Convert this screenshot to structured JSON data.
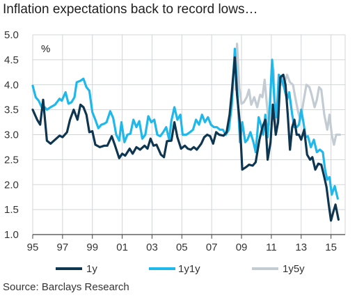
{
  "title": "Inflation expectations back to record lows…",
  "source": "Source: Barclays Research",
  "chart_data": {
    "type": "line",
    "unit_label": "%",
    "ylim": [
      1.0,
      5.0
    ],
    "y_ticks": [
      "1.0",
      "1.5",
      "2.0",
      "2.5",
      "3.0",
      "3.5",
      "4.0",
      "4.5",
      "5.0"
    ],
    "xlim": [
      1995.0,
      2015.95
    ],
    "x_tick_labels": [
      "95",
      "97",
      "99",
      "01",
      "03",
      "05",
      "07",
      "09",
      "11",
      "13",
      "15"
    ],
    "grid": true,
    "legend_position": "bottom",
    "colors": {
      "1y": "#0f3650",
      "1y1y": "#1fb8ea",
      "1y5y": "#c3ccd3"
    },
    "series": [
      {
        "name": "1y",
        "points": [
          [
            1995.0,
            3.5
          ],
          [
            1995.3,
            3.3
          ],
          [
            1995.5,
            3.2
          ],
          [
            1995.7,
            3.7
          ],
          [
            1995.95,
            2.88
          ],
          [
            1996.2,
            2.82
          ],
          [
            1996.5,
            2.9
          ],
          [
            1996.8,
            2.98
          ],
          [
            1997.0,
            2.95
          ],
          [
            1997.3,
            3.05
          ],
          [
            1997.5,
            3.3
          ],
          [
            1997.75,
            3.5
          ],
          [
            1998.0,
            3.3
          ],
          [
            1998.2,
            3.6
          ],
          [
            1998.4,
            3.55
          ],
          [
            1998.6,
            3.4
          ],
          [
            1998.8,
            3.05
          ],
          [
            1999.0,
            3.07
          ],
          [
            1999.2,
            2.8
          ],
          [
            1999.5,
            2.75
          ],
          [
            1999.8,
            2.78
          ],
          [
            2000.0,
            2.78
          ],
          [
            2000.3,
            2.97
          ],
          [
            2000.5,
            2.8
          ],
          [
            2000.8,
            2.53
          ],
          [
            2001.0,
            2.62
          ],
          [
            2001.2,
            2.58
          ],
          [
            2001.5,
            2.72
          ],
          [
            2001.7,
            2.62
          ],
          [
            2001.95,
            2.75
          ],
          [
            2002.2,
            2.7
          ],
          [
            2002.5,
            2.78
          ],
          [
            2002.7,
            2.72
          ],
          [
            2002.9,
            2.92
          ],
          [
            2003.1,
            2.78
          ],
          [
            2003.3,
            2.8
          ],
          [
            2003.6,
            2.6
          ],
          [
            2003.8,
            2.55
          ],
          [
            2004.0,
            2.87
          ],
          [
            2004.3,
            2.88
          ],
          [
            2004.5,
            3.25
          ],
          [
            2004.7,
            2.95
          ],
          [
            2004.95,
            2.72
          ],
          [
            2005.2,
            2.78
          ],
          [
            2005.4,
            2.72
          ],
          [
            2005.6,
            2.7
          ],
          [
            2005.8,
            2.75
          ],
          [
            2006.0,
            2.7
          ],
          [
            2006.3,
            2.82
          ],
          [
            2006.5,
            2.95
          ],
          [
            2006.7,
            3.0
          ],
          [
            2006.9,
            2.97
          ],
          [
            2007.1,
            2.82
          ],
          [
            2007.3,
            3.05
          ],
          [
            2007.5,
            3.0
          ],
          [
            2007.8,
            2.98
          ],
          [
            2008.0,
            3.05
          ],
          [
            2008.2,
            3.4
          ],
          [
            2008.35,
            3.85
          ],
          [
            2008.55,
            4.55
          ],
          [
            2008.7,
            3.8
          ],
          [
            2008.9,
            3.2
          ],
          [
            2009.05,
            2.3
          ],
          [
            2009.3,
            2.35
          ],
          [
            2009.5,
            2.4
          ],
          [
            2009.75,
            2.38
          ],
          [
            2009.95,
            2.45
          ],
          [
            2010.2,
            2.9
          ],
          [
            2010.4,
            3.15
          ],
          [
            2010.6,
            3.3
          ],
          [
            2010.75,
            2.5
          ],
          [
            2010.95,
            2.85
          ],
          [
            2011.1,
            3.6
          ],
          [
            2011.3,
            3.0
          ],
          [
            2011.45,
            3.25
          ],
          [
            2011.6,
            4.15
          ],
          [
            2011.8,
            4.2
          ],
          [
            2011.95,
            4.0
          ],
          [
            2012.1,
            3.4
          ],
          [
            2012.25,
            2.7
          ],
          [
            2012.4,
            3.15
          ],
          [
            2012.55,
            3.3
          ],
          [
            2012.7,
            3.0
          ],
          [
            2012.85,
            3.0
          ],
          [
            2013.0,
            2.9
          ],
          [
            2013.2,
            3.1
          ],
          [
            2013.4,
            2.6
          ],
          [
            2013.6,
            2.5
          ],
          [
            2013.75,
            2.55
          ],
          [
            2013.95,
            2.3
          ],
          [
            2014.15,
            2.42
          ],
          [
            2014.35,
            2.4
          ],
          [
            2014.55,
            2.15
          ],
          [
            2014.7,
            1.95
          ],
          [
            2014.85,
            1.6
          ],
          [
            2015.0,
            1.28
          ],
          [
            2015.15,
            1.45
          ],
          [
            2015.3,
            1.6
          ],
          [
            2015.5,
            1.3
          ]
        ]
      },
      {
        "name": "1y1y",
        "points": [
          [
            1995.0,
            3.98
          ],
          [
            1995.2,
            3.75
          ],
          [
            1995.4,
            3.68
          ],
          [
            1995.6,
            3.55
          ],
          [
            1995.8,
            3.55
          ],
          [
            1995.95,
            3.5
          ],
          [
            1996.2,
            3.55
          ],
          [
            1996.5,
            3.6
          ],
          [
            1996.8,
            3.72
          ],
          [
            1996.95,
            3.68
          ],
          [
            1997.2,
            3.85
          ],
          [
            1997.4,
            3.62
          ],
          [
            1997.6,
            3.65
          ],
          [
            1997.8,
            3.75
          ],
          [
            1997.95,
            4.05
          ],
          [
            1998.2,
            4.08
          ],
          [
            1998.4,
            4.12
          ],
          [
            1998.6,
            3.95
          ],
          [
            1998.8,
            3.88
          ],
          [
            1999.0,
            3.45
          ],
          [
            1999.2,
            3.3
          ],
          [
            1999.4,
            3.13
          ],
          [
            1999.6,
            3.2
          ],
          [
            1999.8,
            3.22
          ],
          [
            1999.95,
            3.25
          ],
          [
            2000.2,
            3.47
          ],
          [
            2000.4,
            3.33
          ],
          [
            2000.6,
            3.0
          ],
          [
            2000.8,
            2.88
          ],
          [
            2000.95,
            3.25
          ],
          [
            2001.15,
            2.85
          ],
          [
            2001.35,
            3.0
          ],
          [
            2001.55,
            3.02
          ],
          [
            2001.75,
            3.3
          ],
          [
            2001.95,
            3.15
          ],
          [
            2002.15,
            3.27
          ],
          [
            2002.35,
            2.92
          ],
          [
            2002.55,
            3.0
          ],
          [
            2002.75,
            3.37
          ],
          [
            2002.95,
            3.25
          ],
          [
            2003.15,
            3.3
          ],
          [
            2003.35,
            3.0
          ],
          [
            2003.55,
            2.97
          ],
          [
            2003.75,
            3.05
          ],
          [
            2003.95,
            3.15
          ],
          [
            2004.15,
            2.9
          ],
          [
            2004.3,
            3.28
          ],
          [
            2004.5,
            3.55
          ],
          [
            2004.7,
            3.3
          ],
          [
            2004.9,
            3.4
          ],
          [
            2005.05,
            3.0
          ],
          [
            2005.3,
            3.0
          ],
          [
            2005.55,
            3.05
          ],
          [
            2005.75,
            3.1
          ],
          [
            2005.95,
            3.3
          ],
          [
            2006.15,
            3.2
          ],
          [
            2006.35,
            3.4
          ],
          [
            2006.55,
            3.25
          ],
          [
            2006.75,
            3.35
          ],
          [
            2006.95,
            3.2
          ],
          [
            2007.15,
            3.15
          ],
          [
            2007.35,
            3.15
          ],
          [
            2007.55,
            3.1
          ],
          [
            2007.75,
            3.1
          ],
          [
            2007.95,
            3.0
          ],
          [
            2008.15,
            3.1
          ],
          [
            2008.35,
            3.6
          ],
          [
            2008.55,
            4.72
          ],
          [
            2008.75,
            3.7
          ],
          [
            2008.9,
            2.85
          ],
          [
            2009.05,
            3.25
          ],
          [
            2009.25,
            2.85
          ],
          [
            2009.4,
            2.9
          ],
          [
            2009.6,
            3.05
          ],
          [
            2009.8,
            2.85
          ],
          [
            2009.95,
            2.65
          ],
          [
            2010.15,
            3.35
          ],
          [
            2010.3,
            3.2
          ],
          [
            2010.45,
            3.0
          ],
          [
            2010.6,
            3.4
          ],
          [
            2010.75,
            2.95
          ],
          [
            2010.9,
            3.6
          ],
          [
            2011.05,
            4.5
          ],
          [
            2011.2,
            3.7
          ],
          [
            2011.35,
            3.35
          ],
          [
            2011.5,
            4.2
          ],
          [
            2011.65,
            4.15
          ],
          [
            2011.85,
            3.95
          ],
          [
            2012.05,
            3.7
          ],
          [
            2012.2,
            3.85
          ],
          [
            2012.4,
            3.4
          ],
          [
            2012.55,
            3.15
          ],
          [
            2012.7,
            3.15
          ],
          [
            2012.85,
            3.2
          ],
          [
            2013.0,
            3.5
          ],
          [
            2013.15,
            3.25
          ],
          [
            2013.3,
            2.95
          ],
          [
            2013.45,
            2.97
          ],
          [
            2013.65,
            2.75
          ],
          [
            2013.85,
            2.9
          ],
          [
            2014.05,
            2.65
          ],
          [
            2014.25,
            2.7
          ],
          [
            2014.45,
            2.65
          ],
          [
            2014.6,
            2.3
          ],
          [
            2014.75,
            2.1
          ],
          [
            2014.9,
            2.15
          ],
          [
            2015.05,
            1.8
          ],
          [
            2015.25,
            1.97
          ],
          [
            2015.45,
            1.72
          ]
        ]
      },
      {
        "name": "1y5y",
        "points": [
          [
            2008.6,
            3.9
          ],
          [
            2008.7,
            4.82
          ],
          [
            2008.85,
            3.95
          ],
          [
            2009.0,
            3.62
          ],
          [
            2009.15,
            3.65
          ],
          [
            2009.35,
            3.75
          ],
          [
            2009.5,
            3.9
          ],
          [
            2009.65,
            3.6
          ],
          [
            2009.85,
            3.75
          ],
          [
            2010.05,
            3.55
          ],
          [
            2010.25,
            3.8
          ],
          [
            2010.4,
            3.75
          ],
          [
            2010.55,
            4.1
          ],
          [
            2010.7,
            3.6
          ],
          [
            2010.85,
            3.2
          ],
          [
            2010.95,
            3.8
          ],
          [
            2011.05,
            4.4
          ],
          [
            2011.15,
            4.3
          ],
          [
            2011.3,
            3.0
          ],
          [
            2011.45,
            3.8
          ],
          [
            2011.55,
            4.1
          ],
          [
            2011.7,
            4.0
          ],
          [
            2011.9,
            4.05
          ],
          [
            2012.05,
            4.2
          ],
          [
            2012.25,
            4.05
          ],
          [
            2012.45,
            4.0
          ],
          [
            2012.6,
            3.75
          ],
          [
            2012.8,
            3.45
          ],
          [
            2012.95,
            3.3
          ],
          [
            2013.15,
            3.65
          ],
          [
            2013.35,
            4.0
          ],
          [
            2013.55,
            3.95
          ],
          [
            2013.7,
            3.8
          ],
          [
            2013.9,
            3.55
          ],
          [
            2014.05,
            3.7
          ],
          [
            2014.2,
            3.95
          ],
          [
            2014.35,
            3.9
          ],
          [
            2014.55,
            3.4
          ],
          [
            2014.75,
            3.1
          ],
          [
            2014.9,
            3.4
          ],
          [
            2015.05,
            3.0
          ],
          [
            2015.2,
            2.8
          ],
          [
            2015.35,
            3.0
          ],
          [
            2015.6,
            3.0
          ]
        ]
      }
    ]
  }
}
